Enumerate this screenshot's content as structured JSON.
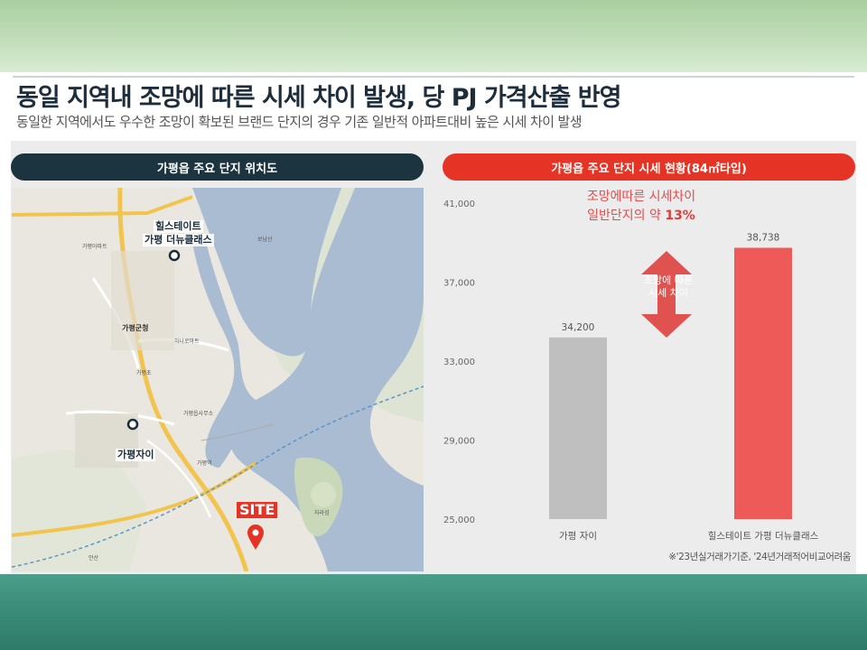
{
  "header": {
    "title": "동일 지역내 조망에 따른 시세 차이 발생, 당 PJ 가격산출 반영",
    "subtitle": "동일한 지역에서도 우수한 조망이 확보된 브랜드 단지의 경우 기존 일반적 아파트대비 높은 시세 차이 발생"
  },
  "map_panel": {
    "heading": "가평읍 주요 단지 위치도",
    "callouts": {
      "hillstate_line1": "힐스테이트",
      "hillstate_line2": "가평 더뉴클래스",
      "xi": "가평자이",
      "site": "SITE"
    },
    "labels": {
      "county_office": "가평군청",
      "l1": "가평아파트",
      "l2": "가평역",
      "l3": "자라섬",
      "l4": "보납산",
      "l5": "하나로마트",
      "l6": "가평읍사무소",
      "l7": "가평초",
      "l8": "안산"
    }
  },
  "chart_panel": {
    "heading": "가평읍 주요 단지 시세 현황(84㎡타입)",
    "annotation_line1": "조망에따른 시세차이",
    "annotation_line2_prefix": "일반단지의 약 ",
    "annotation_line2_value": "13%",
    "arrow_line1": "조망에 따른",
    "arrow_line2": "시세 차이",
    "footnote": "※'23년실거래가기준, '24년거래적어비교어려움"
  },
  "chart_data": {
    "type": "bar",
    "categories": [
      "가평 자이",
      "힐스테이트 가평 더뉴클래스"
    ],
    "values": [
      34200,
      38738
    ],
    "value_labels": [
      "34,200",
      "38,738"
    ],
    "ylim": [
      25000,
      41000
    ],
    "yticks": [
      25000,
      29000,
      33000,
      37000,
      41000
    ],
    "ytick_labels": [
      "25,000",
      "29,000",
      "33,000",
      "37,000",
      "41,000"
    ],
    "colors": [
      "#bfbfbf",
      "#ed5a57"
    ],
    "grid": false
  }
}
